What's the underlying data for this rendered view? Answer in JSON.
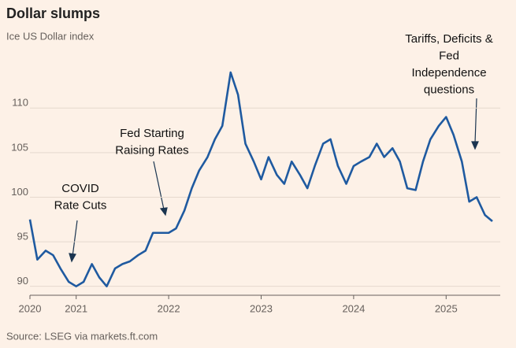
{
  "chart_data": {
    "type": "line",
    "title": "Dollar slumps",
    "subtitle": "Ice US Dollar index",
    "source": "Source: LSEG via markets.ft.com",
    "annotations": [
      [
        "COVID",
        "Rate Cuts"
      ],
      [
        "Fed Starting",
        "Raising Rates"
      ],
      [
        "Tariffs, Deficits &",
        "Fed",
        "Independence",
        "questions"
      ]
    ],
    "x": [
      2020.5,
      2020.58,
      2020.67,
      2020.75,
      2020.83,
      2020.92,
      2021.0,
      2021.08,
      2021.17,
      2021.25,
      2021.33,
      2021.42,
      2021.5,
      2021.58,
      2021.67,
      2021.75,
      2021.83,
      2021.92,
      2022.0,
      2022.08,
      2022.17,
      2022.25,
      2022.33,
      2022.42,
      2022.5,
      2022.58,
      2022.67,
      2022.75,
      2022.83,
      2022.92,
      2023.0,
      2023.08,
      2023.17,
      2023.25,
      2023.33,
      2023.42,
      2023.5,
      2023.58,
      2023.67,
      2023.75,
      2023.83,
      2023.92,
      2024.0,
      2024.08,
      2024.17,
      2024.25,
      2024.33,
      2024.42,
      2024.5,
      2024.58,
      2024.67,
      2024.75,
      2024.83,
      2024.92,
      2025.0,
      2025.08,
      2025.17,
      2025.25,
      2025.33,
      2025.42,
      2025.5
    ],
    "series": [
      {
        "name": "Ice US Dollar index",
        "color": "#1f5aa0",
        "values": [
          97.5,
          93,
          94,
          93.5,
          92,
          90.5,
          90,
          90.5,
          92.5,
          91,
          90,
          92,
          92.5,
          92.8,
          93.5,
          94,
          96,
          96,
          96,
          96.5,
          98.5,
          101,
          103,
          104.5,
          106.5,
          108,
          114,
          111.5,
          106,
          104,
          102,
          104.5,
          102.5,
          101.5,
          104,
          102.5,
          101,
          103.5,
          106,
          106.5,
          103.5,
          101.5,
          103.5,
          104,
          104.5,
          106,
          104.5,
          105.5,
          104,
          101,
          100.8,
          104,
          106.5,
          108,
          109,
          107,
          104,
          99.5,
          100,
          98,
          97.3
        ]
      }
    ],
    "xlim": [
      2020.5,
      2025.5
    ],
    "xticks": [
      {
        "value": 2020.5,
        "label": "2020"
      },
      2021,
      2022,
      2023,
      2024,
      2025
    ],
    "ylim": [
      89,
      115.5
    ],
    "yticks": [
      90,
      95,
      100,
      105,
      110
    ],
    "grid": true
  }
}
